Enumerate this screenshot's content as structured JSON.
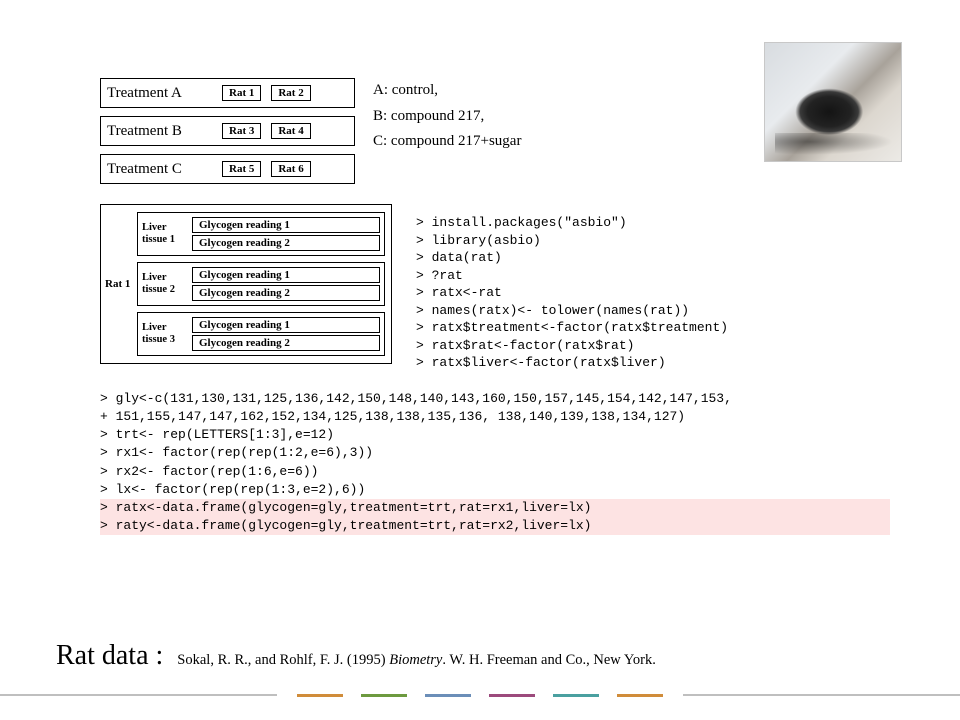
{
  "treatments": [
    {
      "label": "Treatment A",
      "rats": [
        "Rat 1",
        "Rat 2"
      ]
    },
    {
      "label": "Treatment B",
      "rats": [
        "Rat 3",
        "Rat 4"
      ]
    },
    {
      "label": "Treatment C",
      "rats": [
        "Rat 5",
        "Rat 6"
      ]
    }
  ],
  "legend": {
    "a": "A: control,",
    "b": "B: compound 217,",
    "c": "C: compound 217+sugar"
  },
  "rat1": {
    "tag": "Rat 1",
    "tissues": [
      {
        "label": "Liver tissue 1",
        "readings": [
          "Glycogen reading 1",
          "Glycogen reading 2"
        ]
      },
      {
        "label": "Liver tissue 2",
        "readings": [
          "Glycogen reading 1",
          "Glycogen reading 2"
        ]
      },
      {
        "label": "Liver tissue 3",
        "readings": [
          "Glycogen reading 1",
          "Glycogen reading 2"
        ]
      }
    ]
  },
  "code_right": "> install.packages(\"asbio\")\n> library(asbio)\n> data(rat)\n> ?rat\n> ratx<-rat\n> names(ratx)<- tolower(names(rat))\n> ratx$treatment<-factor(ratx$treatment)\n> ratx$rat<-factor(ratx$rat)\n> ratx$liver<-factor(ratx$liver)",
  "code_bottom_plain": "> gly<-c(131,130,131,125,136,142,150,148,140,143,160,150,157,145,154,142,147,153,\n+ 151,155,147,147,162,152,134,125,138,138,135,136, 138,140,139,138,134,127)\n> trt<- rep(LETTERS[1:3],e=12)\n> rx1<- factor(rep(rep(1:2,e=6),3))\n> rx2<- factor(rep(1:6,e=6))\n> lx<- factor(rep(rep(1:3,e=2),6))",
  "code_bottom_hl1": "> ratx<-data.frame(glycogen=gly,treatment=trt,rat=rx1,liver=lx)",
  "code_bottom_hl2": "> raty<-data.frame(glycogen=gly,treatment=trt,rat=rx2,liver=lx)",
  "footer": {
    "title": "Rat data :",
    "cite_pre": "Sokal, R. R., and Rohlf, F. J. (1995) ",
    "cite_ital": "Biometry",
    "cite_post": ". W. H. Freeman and Co., New York."
  },
  "colors": {
    "highlight": "#fde3e3",
    "deco": [
      "#d08c3a",
      "#6d9a3f",
      "#6b8eb8",
      "#9c4a7c",
      "#4aa0a0",
      "#d08c3a"
    ]
  }
}
